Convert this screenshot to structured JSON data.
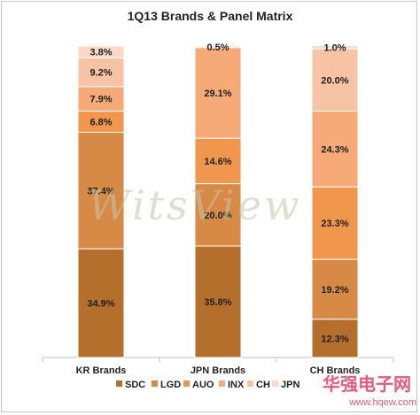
{
  "chart_data": {
    "type": "bar",
    "stacked": true,
    "title": "1Q13 Brands & Panel Matrix",
    "categories": [
      "KR Brands",
      "JPN Brands",
      "CH Brands"
    ],
    "series": [
      {
        "name": "SDC",
        "values": [
          34.9,
          35.8,
          12.3
        ],
        "color": "#b56f2d",
        "labels": [
          "34.9%",
          "35.8%",
          "12.3%"
        ]
      },
      {
        "name": "LGD",
        "values": [
          37.4,
          20.0,
          19.2
        ],
        "color": "#d68a46",
        "labels": [
          "37.4%",
          "20.0%",
          "19.2%"
        ]
      },
      {
        "name": "AUO",
        "values": [
          6.8,
          14.6,
          23.3
        ],
        "color": "#f0964d",
        "labels": [
          "6.8%",
          "14.6%",
          "23.3%"
        ]
      },
      {
        "name": "INX",
        "values": [
          7.9,
          29.1,
          24.3
        ],
        "color": "#f5aa77",
        "labels": [
          "7.9%",
          "29.1%",
          "24.3%"
        ]
      },
      {
        "name": "CH",
        "values": [
          9.2,
          0.0,
          20.0
        ],
        "color": "#f8c3a5",
        "labels": [
          "9.2%",
          "",
          "20.0%"
        ]
      },
      {
        "name": "JPN",
        "values": [
          3.8,
          0.5,
          1.0
        ],
        "color": "#fbd9c6",
        "labels": [
          "3.8%",
          "0.5%",
          "1.0%"
        ]
      }
    ],
    "ylim": [
      0,
      100
    ],
    "legend": "bottom",
    "grid": false,
    "watermark": "WitsView"
  },
  "footer": {
    "logo": "华强电子网",
    "url": "www.hqew.com"
  }
}
